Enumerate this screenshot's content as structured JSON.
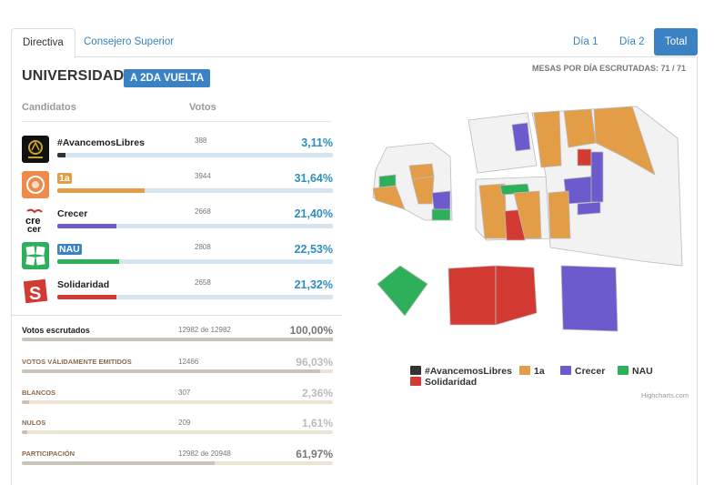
{
  "tabs": [
    {
      "label": "Directiva",
      "active": true
    },
    {
      "label": "Consejero Superior",
      "active": false
    }
  ],
  "right_tabs": [
    {
      "label": "Día 1",
      "active": false
    },
    {
      "label": "Día 2",
      "active": false
    },
    {
      "label": "Total",
      "active": true
    }
  ],
  "title": "UNIVERSIDAD",
  "badge": "A 2DA VUELTA",
  "mesas": "MESAS POR DÍA ESCRUTADAS: 71 / 71",
  "headers": {
    "candidatos": "Candidatos",
    "votos": "Votos"
  },
  "candidates": [
    {
      "name": "#AvancemosLibres",
      "votes": "388",
      "pct": "3,11%",
      "share": 3.11,
      "color": "#333333",
      "icon": "avancemos-logo"
    },
    {
      "name": "1a",
      "votes": "3944",
      "pct": "31,64%",
      "share": 31.64,
      "color": "#e39d47",
      "icon": "1a-logo"
    },
    {
      "name": "Crecer",
      "votes": "2668",
      "pct": "21,40%",
      "share": 21.4,
      "color": "#6b5bcd",
      "icon": "crecer-logo"
    },
    {
      "name": "NAU",
      "votes": "2808",
      "pct": "22,53%",
      "share": 22.53,
      "color": "#2eb05a",
      "icon": "nau-logo"
    },
    {
      "name": "Solidaridad",
      "votes": "2658",
      "pct": "21,32%",
      "share": 21.32,
      "color": "#d23a32",
      "icon": "solidaridad-logo"
    }
  ],
  "stats": [
    {
      "label": "Votos escrutados",
      "value": "12982 de 12982",
      "pct": "100,00%",
      "share": 100.0
    },
    {
      "label": "VOTOS VÁLIDAMENTE EMITIDOS",
      "value": "12466",
      "pct": "96,03%",
      "share": 96.03
    },
    {
      "label": "BLANCOS",
      "value": "307",
      "pct": "2,36%",
      "share": 2.36
    },
    {
      "label": "NULOS",
      "value": "209",
      "pct": "1,61%",
      "share": 1.61
    },
    {
      "label": "PARTICIPACIÓN",
      "value": "12982 de 20948",
      "pct": "61,97%",
      "share": 61.97
    }
  ],
  "legend": [
    {
      "label": "#AvancemosLibres",
      "color": "#333333"
    },
    {
      "label": "1a",
      "color": "#e39d47"
    },
    {
      "label": "Crecer",
      "color": "#6b5bcd"
    },
    {
      "label": "NAU",
      "color": "#2eb05a"
    },
    {
      "label": "Solidaridad",
      "color": "#d23a32"
    }
  ],
  "credits": "Highcharts.com",
  "colors": {
    "accent": "#3a82c4",
    "pct": "#2d8fbf"
  }
}
